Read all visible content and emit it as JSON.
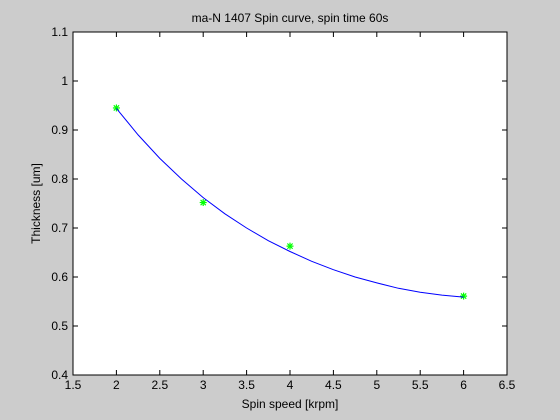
{
  "chart_data": {
    "type": "scatter",
    "title": "ma-N 1407 Spin curve, spin time 60s",
    "xlabel": "Spin speed [krpm]",
    "ylabel": "Thickness [um]",
    "xlim": [
      1.5,
      6.5
    ],
    "ylim": [
      0.4,
      1.1
    ],
    "xticks": [
      1.5,
      2,
      2.5,
      3,
      3.5,
      4,
      4.5,
      5,
      5.5,
      6,
      6.5
    ],
    "yticks": [
      0.4,
      0.5,
      0.6,
      0.7,
      0.8,
      0.9,
      1,
      1.1
    ],
    "xtick_labels": [
      "1.5",
      "2",
      "2.5",
      "3",
      "3.5",
      "4",
      "4.5",
      "5",
      "5.5",
      "6",
      "6.5"
    ],
    "ytick_labels": [
      "0.4",
      "0.5",
      "0.6",
      "0.7",
      "0.8",
      "0.9",
      "1",
      "1.1"
    ],
    "grid": false,
    "legend": "none",
    "series": [
      {
        "kind": "markers",
        "marker": "asterisk",
        "color": "#00ff00",
        "x": [
          2,
          3,
          4,
          6
        ],
        "y": [
          0.945,
          0.752,
          0.663,
          0.561
        ]
      },
      {
        "kind": "line",
        "color": "#0000ff",
        "x": [
          2,
          2.25,
          2.5,
          2.75,
          3,
          3.25,
          3.5,
          3.75,
          4,
          4.25,
          4.5,
          4.75,
          5,
          5.25,
          5.5,
          5.75,
          6
        ],
        "y": [
          0.944,
          0.89,
          0.842,
          0.8,
          0.762,
          0.729,
          0.7,
          0.674,
          0.652,
          0.632,
          0.615,
          0.6,
          0.588,
          0.577,
          0.569,
          0.563,
          0.559
        ]
      }
    ]
  }
}
